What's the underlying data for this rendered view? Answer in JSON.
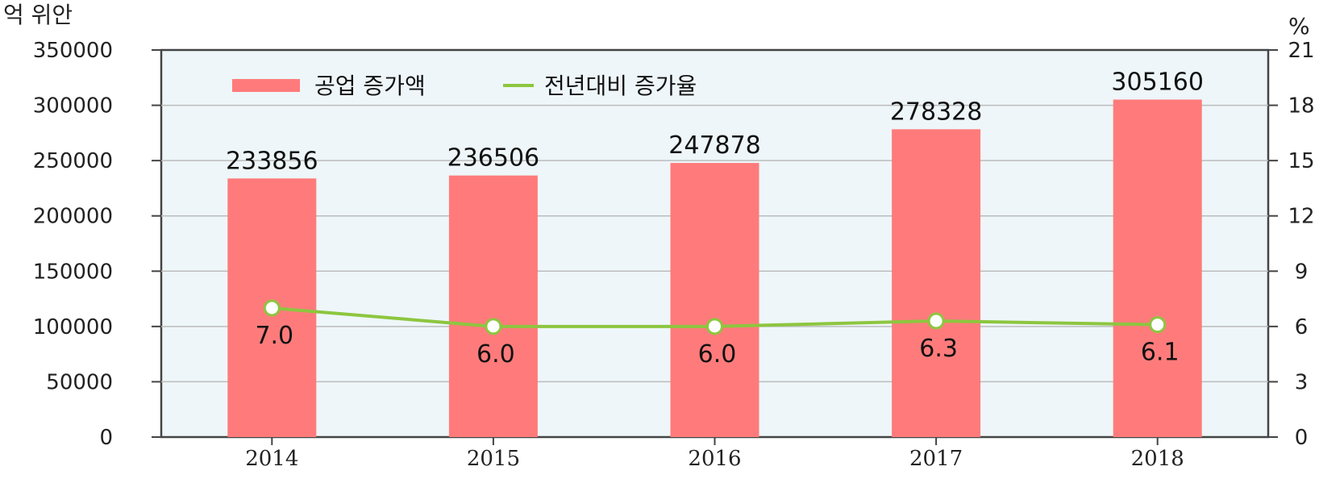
{
  "chart_data": {
    "type": "bar",
    "categories": [
      "2014",
      "2015",
      "2016",
      "2017",
      "2018"
    ],
    "series": [
      {
        "name": "공업 증가액",
        "type": "bar",
        "axis": "left",
        "values": [
          233856,
          236506,
          247878,
          278328,
          305160
        ],
        "labels": [
          "233856",
          "236506",
          "247878",
          "278328",
          "305160"
        ],
        "color": "#ff7b7b"
      },
      {
        "name": "전년대비 증가율",
        "type": "line",
        "axis": "right",
        "values": [
          7.0,
          6.0,
          6.0,
          6.3,
          6.1
        ],
        "labels": [
          "7.0",
          "6.0",
          "6.0",
          "6.3",
          "6.1"
        ],
        "color": "#8dc63f"
      }
    ],
    "y_left": {
      "unit": "억 위안",
      "ylim": [
        0,
        350000
      ],
      "ticks": [
        "0",
        "50000",
        "100000",
        "150000",
        "200000",
        "250000",
        "300000",
        "350000"
      ]
    },
    "y_right": {
      "unit": "%",
      "ylim": [
        0,
        21
      ],
      "ticks": [
        "0",
        "3",
        "6",
        "9",
        "12",
        "15",
        "18",
        "21"
      ]
    },
    "legend": "top-left",
    "grid": true,
    "plot_background": "#eef6f9"
  }
}
